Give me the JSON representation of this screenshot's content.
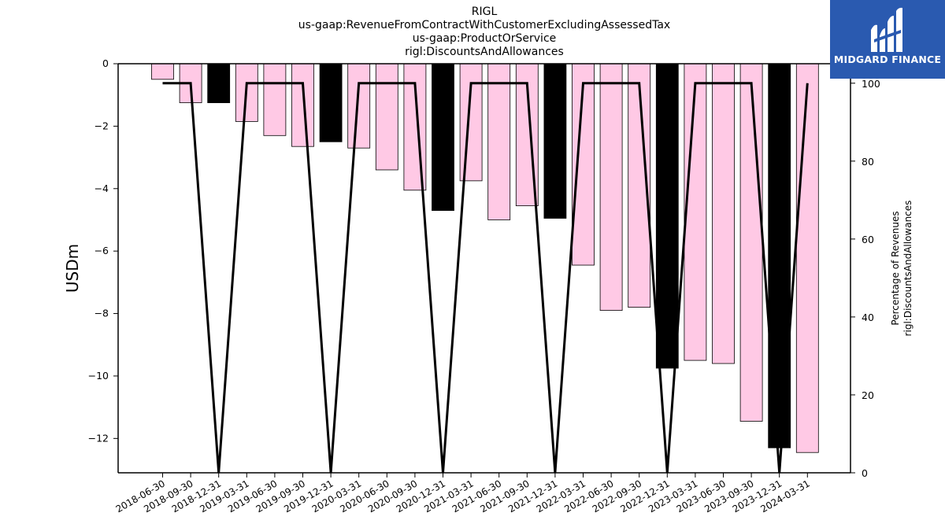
{
  "title_lines": [
    "RIGL",
    "us-gaap:RevenueFromContractWithCustomerExcludingAssessedTax",
    "us-gaap:ProductOrService",
    "rigl:DiscountsAndAllowances"
  ],
  "logo": {
    "text": "MIDGARD FINANCE",
    "icon": "midgard-logo-icon",
    "background": "#2a5ab0"
  },
  "chart_data": {
    "type": "bar",
    "categories": [
      "2018-06-30",
      "2018-09-30",
      "2018-12-31",
      "2019-03-31",
      "2019-06-30",
      "2019-09-30",
      "2019-12-31",
      "2020-03-31",
      "2020-06-30",
      "2020-09-30",
      "2020-12-31",
      "2021-03-31",
      "2021-06-30",
      "2021-09-30",
      "2021-12-31",
      "2022-03-31",
      "2022-06-30",
      "2022-09-30",
      "2022-12-31",
      "2023-03-31",
      "2023-06-30",
      "2023-09-30",
      "2023-12-31",
      "2024-03-31"
    ],
    "series": [
      {
        "values": [
          -0.5,
          -1.25,
          -1.25,
          -1.85,
          -2.3,
          -2.65,
          -2.5,
          -2.7,
          -3.4,
          -4.05,
          -4.7,
          -3.75,
          -5.0,
          -4.55,
          -4.95,
          -6.45,
          -7.9,
          -7.8,
          -9.75,
          -9.5,
          -9.6,
          -11.45,
          -12.3,
          -12.45
        ],
        "colors": [
          "#ffc9e5",
          "#ffc9e5",
          "#000000",
          "#ffc9e5",
          "#ffc9e5",
          "#ffc9e5",
          "#000000",
          "#ffc9e5",
          "#ffc9e5",
          "#ffc9e5",
          "#000000",
          "#ffc9e5",
          "#ffc9e5",
          "#ffc9e5",
          "#000000",
          "#ffc9e5",
          "#ffc9e5",
          "#ffc9e5",
          "#000000",
          "#ffc9e5",
          "#ffc9e5",
          "#ffc9e5",
          "#000000",
          "#ffc9e5"
        ],
        "axis": "left"
      },
      {
        "type": "line",
        "values": [
          100,
          100,
          0,
          100,
          100,
          100,
          0,
          100,
          100,
          100,
          0,
          100,
          100,
          100,
          0,
          100,
          100,
          100,
          0,
          100,
          100,
          100,
          0,
          100
        ],
        "color": "#000000",
        "axis": "right"
      }
    ],
    "ylabel": "USDm",
    "y2label": [
      "Percentage of Revenues",
      "rigl:DiscountsAndAllowances"
    ],
    "ylim": [
      -13.1,
      0
    ],
    "y2lim": [
      0,
      105
    ],
    "yticks": [
      0,
      -2,
      -4,
      -6,
      -8,
      -10,
      -12
    ],
    "y2ticks": [
      0,
      20,
      40,
      60,
      80,
      100
    ],
    "grid": false
  }
}
